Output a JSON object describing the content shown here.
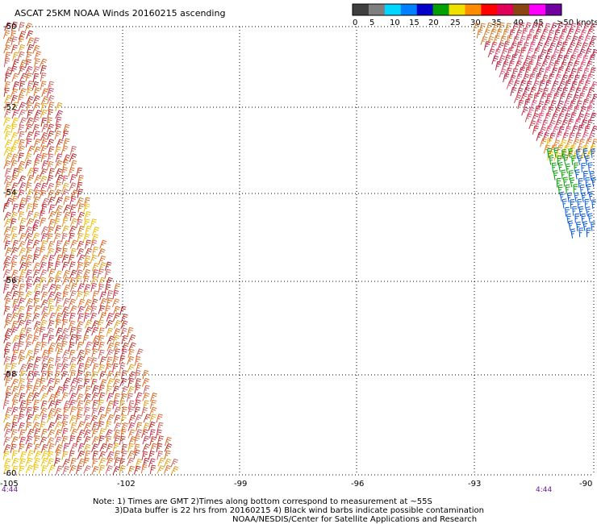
{
  "title": "ASCAT 25KM NOAA Winds 20160215 ascending",
  "legend": {
    "labels": [
      "0",
      "5",
      "10",
      "15",
      "20",
      "25",
      "30",
      "35",
      "40",
      "45",
      ">50 knots"
    ],
    "colors": [
      "#3f3f3f",
      "#7f7f7f",
      "#00d6ff",
      "#0080ff",
      "#0000c8",
      "#00a000",
      "#f0e000",
      "#ff8c00",
      "#ff0000",
      "#e0005a",
      "#8b4513",
      "#ff00ff",
      "#7000a0"
    ]
  },
  "map": {
    "lat_range": [
      -60,
      -50
    ],
    "lon_range": [
      -105,
      -90
    ],
    "lat_ticks": [
      "-50",
      "-52",
      "-54",
      "-56",
      "-58",
      "-60"
    ],
    "lon_ticks": [
      "-105",
      "-102",
      "-99",
      "-96",
      "-93",
      "-90"
    ],
    "time_labels": [
      "4:44",
      "4:44"
    ]
  },
  "notes": {
    "line1": "Note: 1) Times are GMT 2)Times along bottom correspond to measurement at ~55S",
    "line2": "3)Data buffer is 22 hrs from 20160215 4) Black wind barbs indicate possible contamination",
    "line3": "NOAA/NESDIS/Center for Satellite Applications and Research"
  }
}
